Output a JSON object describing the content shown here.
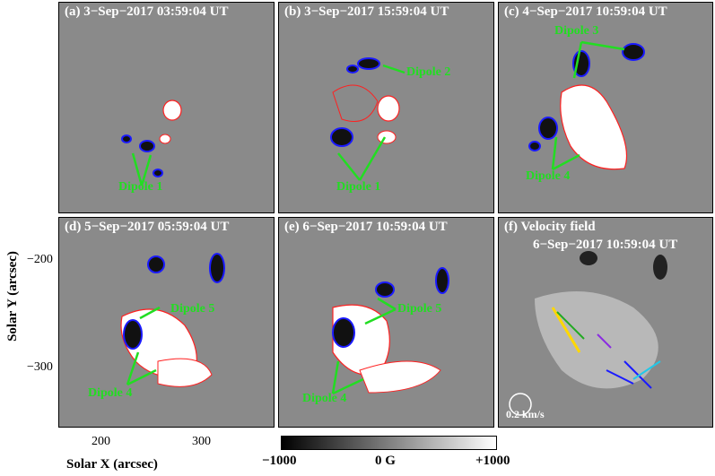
{
  "panels": [
    {
      "label": "(a)  3−Sep−2017 03:59:04 UT",
      "dipoles": [
        "Dipole 1"
      ]
    },
    {
      "label": "(b)  3−Sep−2017 15:59:04 UT",
      "dipoles": [
        "Dipole 2",
        "Dipole 1"
      ]
    },
    {
      "label": "(c)  4−Sep−2017 10:59:04 UT",
      "dipoles": [
        "Dipole 3",
        "Dipole 4"
      ]
    },
    {
      "label": "(d)  5−Sep−2017 05:59:04 UT",
      "dipoles": [
        "Dipole 5",
        "Dipole 4"
      ]
    },
    {
      "label": "(e)  6−Sep−2017 10:59:04 UT",
      "dipoles": [
        "Dipole 5",
        "Dipole 4"
      ]
    },
    {
      "label": "(f) Velocity field",
      "sublabel": "6−Sep−2017 10:59:04 UT",
      "velocity_scale": "0.2 km/s"
    }
  ],
  "axes": {
    "ylabel": "Solar Y (arcsec)",
    "xlabel": "Solar X (arcsec)",
    "yticks": [
      "−200",
      "−300"
    ],
    "xticks": [
      "200",
      "300"
    ]
  },
  "colorbar": {
    "min": "−1000",
    "mid": "0 G",
    "max": "+1000"
  },
  "colors": {
    "positive_contour": "#ff2020",
    "negative_contour": "#1a1aff",
    "annotation": "#22dd22"
  }
}
